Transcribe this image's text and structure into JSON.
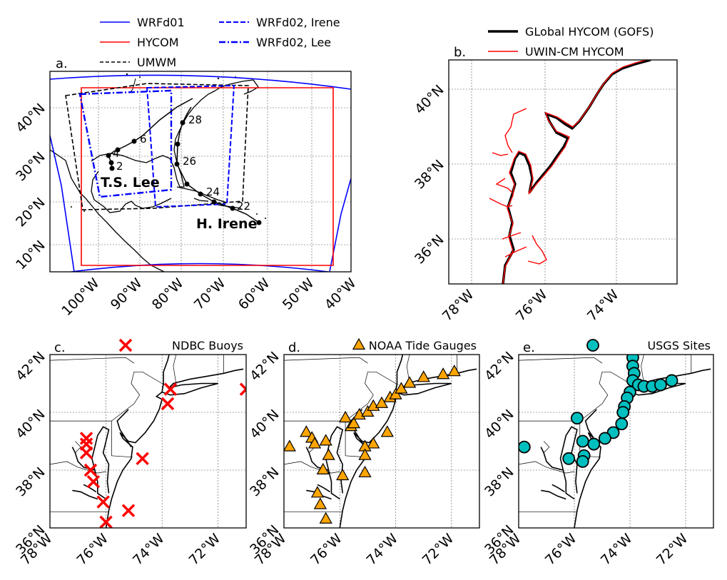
{
  "panel_a": {
    "label": "a.",
    "legend": [
      {
        "label": "WRFd01",
        "color": "#0000ff",
        "style": "solid"
      },
      {
        "label": "HYCOM",
        "color": "#ff0000",
        "style": "solid"
      },
      {
        "label": "UMWM",
        "color": "#000000",
        "style": "dashed"
      },
      {
        "label": "WRFd02, Irene",
        "color": "#0000ff",
        "style": "dashed"
      },
      {
        "label": "WRFd02, Lee",
        "color": "#0000ff",
        "style": "dashdot"
      }
    ],
    "xticks": [
      "100°W",
      "90°W",
      "80°W",
      "70°W",
      "60°W",
      "50°W",
      "40°W"
    ],
    "yticks": [
      "10°N",
      "20°N",
      "30°N",
      "40°N"
    ],
    "track_labels": [
      "28",
      "6",
      "4",
      "2",
      "26",
      "24",
      "22"
    ],
    "storm_labels": [
      "T.S. Lee",
      "H. Irene"
    ]
  },
  "panel_b": {
    "label": "b.",
    "legend": [
      {
        "label": "GLobal HYCOM (GOFS)",
        "color": "#000000"
      },
      {
        "label": "UWIN-CM HYCOM",
        "color": "#ff0000"
      }
    ],
    "xticks": [
      "78°W",
      "76°W",
      "74°W"
    ],
    "yticks": [
      "36°N",
      "38°N",
      "40°N"
    ]
  },
  "panel_c": {
    "label": "c.",
    "legend": "NDBC Buoys",
    "marker_color": "#ff0000",
    "sites": [
      [
        -76.7,
        39.1
      ],
      [
        -76.7,
        38.9
      ],
      [
        -76.7,
        38.6
      ],
      [
        -76.55,
        38.0
      ],
      [
        -76.45,
        37.6
      ],
      [
        -76.1,
        36.9
      ],
      [
        -76.0,
        36.2
      ],
      [
        -75.2,
        36.6
      ],
      [
        -74.7,
        38.4
      ],
      [
        -73.8,
        40.3
      ],
      [
        -73.7,
        40.8
      ],
      [
        -71.0,
        40.8
      ]
    ],
    "xticks": [
      "78°W",
      "76°W",
      "74°W",
      "72°W"
    ],
    "yticks": [
      "36°N",
      "38°N",
      "40°N",
      "42°N"
    ]
  },
  "panel_d": {
    "label": "d.",
    "legend": "NOAA Tide Gauges",
    "marker_color": "#ffa500",
    "sites": [
      [
        -77.8,
        38.8
      ],
      [
        -77.2,
        39.3
      ],
      [
        -77.0,
        39.1
      ],
      [
        -76.9,
        38.9
      ],
      [
        -76.5,
        39.0
      ],
      [
        -76.4,
        38.5
      ],
      [
        -76.6,
        38.0
      ],
      [
        -76.8,
        37.2
      ],
      [
        -76.7,
        36.8
      ],
      [
        -76.5,
        36.3
      ],
      [
        -75.8,
        39.8
      ],
      [
        -75.6,
        39.5
      ],
      [
        -75.5,
        39.6
      ],
      [
        -75.3,
        39.9
      ],
      [
        -75.0,
        40.0
      ],
      [
        -74.8,
        40.2
      ],
      [
        -74.5,
        40.3
      ],
      [
        -74.2,
        40.5
      ],
      [
        -74.0,
        40.6
      ],
      [
        -73.8,
        40.8
      ],
      [
        -73.5,
        41.0
      ],
      [
        -73.0,
        41.2
      ],
      [
        -72.3,
        41.3
      ],
      [
        -71.9,
        41.4
      ],
      [
        -74.3,
        39.3
      ],
      [
        -74.8,
        38.9
      ],
      [
        -75.1,
        38.8
      ],
      [
        -75.1,
        38.5
      ],
      [
        -75.1,
        37.9
      ],
      [
        -75.9,
        37.8
      ]
    ],
    "xticks": [
      "78°W",
      "76°W",
      "74°W",
      "72°W"
    ],
    "yticks": [
      "36°N",
      "38°N",
      "40°N",
      "42°N"
    ]
  },
  "panel_e": {
    "label": "e.",
    "legend": "USGS Sites",
    "marker_color": "#00bfbf",
    "sites": [
      [
        -73.9,
        41.9
      ],
      [
        -73.9,
        41.6
      ],
      [
        -73.85,
        41.35
      ],
      [
        -73.9,
        41.1
      ],
      [
        -73.7,
        40.95
      ],
      [
        -73.5,
        40.9
      ],
      [
        -73.2,
        40.9
      ],
      [
        -72.9,
        40.95
      ],
      [
        -72.5,
        41.1
      ],
      [
        -74.0,
        40.7
      ],
      [
        -74.1,
        40.5
      ],
      [
        -74.2,
        40.2
      ],
      [
        -74.25,
        40.0
      ],
      [
        -74.3,
        39.6
      ],
      [
        -74.6,
        39.3
      ],
      [
        -74.9,
        39.1
      ],
      [
        -75.3,
        38.9
      ],
      [
        -75.7,
        39.0
      ],
      [
        -75.65,
        38.5
      ],
      [
        -75.7,
        38.3
      ],
      [
        -76.2,
        38.4
      ],
      [
        -75.9,
        39.8
      ],
      [
        -77.8,
        38.8
      ]
    ],
    "xticks": [
      "78°W",
      "76°W",
      "74°W",
      "72°W"
    ],
    "yticks": [
      "36°N",
      "38°N",
      "40°N",
      "42°N"
    ]
  }
}
